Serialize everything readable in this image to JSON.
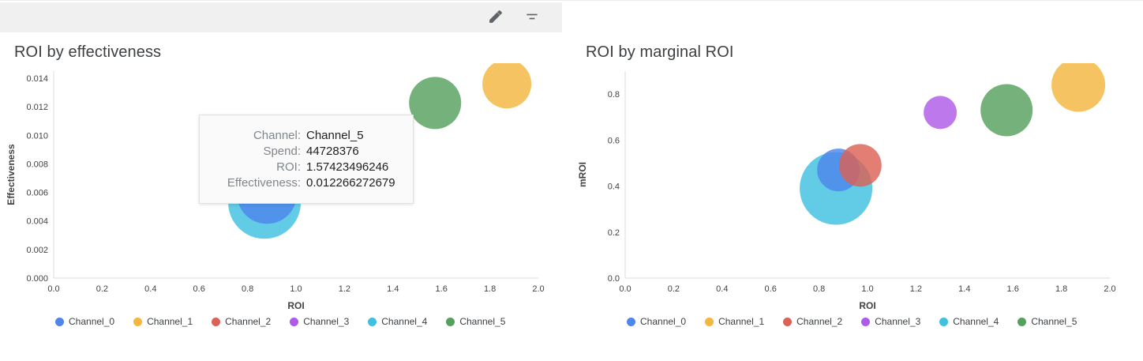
{
  "toolbar": {
    "icons": [
      {
        "name": "edit-pencil"
      },
      {
        "name": "filter-list"
      }
    ]
  },
  "tooltip": {
    "rows": [
      {
        "label": "Channel:",
        "value": "Channel_5"
      },
      {
        "label": "Spend:",
        "value": "44728376"
      },
      {
        "label": "ROI:",
        "value": "1.57423496246"
      },
      {
        "label": "Effectiveness:",
        "value": "0.012266272679"
      }
    ]
  },
  "palette": {
    "Channel_0": "#4E86EC",
    "Channel_1": "#F4B63F",
    "Channel_2": "#DC6156",
    "Channel_3": "#AE5CE8",
    "Channel_4": "#3FC0DF",
    "Channel_5": "#55A05E"
  },
  "chart_data": [
    {
      "type": "scatter",
      "title": "ROI by effectiveness",
      "xlabel": "ROI",
      "ylabel": "Effectiveness",
      "xlim": [
        0.0,
        2.0
      ],
      "ylim": [
        0.0,
        0.0145
      ],
      "grid": false,
      "legend_position": "bottom",
      "xticks": [
        0.0,
        0.2,
        0.4,
        0.6,
        0.8,
        1.0,
        1.2,
        1.4,
        1.6,
        1.8,
        2.0
      ],
      "xtick_labels": [
        "0.0",
        "0.2",
        "0.4",
        "0.6",
        "0.8",
        "1.0",
        "1.2",
        "1.4",
        "1.6",
        "1.8",
        "2.0"
      ],
      "yticks": [
        0.0,
        0.002,
        0.004,
        0.006,
        0.008,
        0.01,
        0.012,
        0.014
      ],
      "ytick_labels": [
        "0.000",
        "0.002",
        "0.004",
        "0.006",
        "0.008",
        "0.010",
        "0.012",
        "0.014"
      ],
      "points": [
        {
          "name": "Channel_4",
          "x": 0.87,
          "y": 0.0053,
          "r": 46,
          "color": "#3FC0DF"
        },
        {
          "name": "Channel_0",
          "x": 0.88,
          "y": 0.0059,
          "r": 38,
          "color": "#4E86EC"
        },
        {
          "name": "Channel_5",
          "x": 1.574,
          "y": 0.012266272679,
          "r": 33,
          "color": "#55A05E"
        },
        {
          "name": "Channel_1",
          "x": 1.87,
          "y": 0.0136,
          "r": 31,
          "color": "#F4B63F"
        }
      ],
      "legend": [
        {
          "label": "Channel_0",
          "color": "#4E86EC"
        },
        {
          "label": "Channel_1",
          "color": "#F4B63F"
        },
        {
          "label": "Channel_2",
          "color": "#DC6156"
        },
        {
          "label": "Channel_3",
          "color": "#AE5CE8"
        },
        {
          "label": "Channel_4",
          "color": "#3FC0DF"
        },
        {
          "label": "Channel_5",
          "color": "#55A05E"
        }
      ]
    },
    {
      "type": "scatter",
      "title": "ROI by marginal ROI",
      "xlabel": "ROI",
      "ylabel": "mROI",
      "xlim": [
        0.0,
        2.0
      ],
      "ylim": [
        0.0,
        0.9
      ],
      "grid": false,
      "legend_position": "bottom",
      "xticks": [
        0.0,
        0.2,
        0.4,
        0.6,
        0.8,
        1.0,
        1.2,
        1.4,
        1.6,
        1.8,
        2.0
      ],
      "xtick_labels": [
        "0.0",
        "0.2",
        "0.4",
        "0.6",
        "0.8",
        "1.0",
        "1.2",
        "1.4",
        "1.6",
        "1.8",
        "2.0"
      ],
      "yticks": [
        0.0,
        0.2,
        0.4,
        0.6,
        0.8
      ],
      "ytick_labels": [
        "0.0",
        "0.2",
        "0.4",
        "0.6",
        "0.8"
      ],
      "points": [
        {
          "name": "Channel_4",
          "x": 0.87,
          "y": 0.39,
          "r": 46,
          "color": "#3FC0DF"
        },
        {
          "name": "Channel_0",
          "x": 0.88,
          "y": 0.47,
          "r": 27,
          "color": "#4E86EC"
        },
        {
          "name": "Channel_2",
          "x": 0.97,
          "y": 0.49,
          "r": 27,
          "color": "#DC6156"
        },
        {
          "name": "Channel_3",
          "x": 1.3,
          "y": 0.72,
          "r": 21,
          "color": "#AE5CE8"
        },
        {
          "name": "Channel_5",
          "x": 1.574,
          "y": 0.73,
          "r": 33,
          "color": "#55A05E"
        },
        {
          "name": "Channel_1",
          "x": 1.87,
          "y": 0.84,
          "r": 34,
          "color": "#F4B63F"
        }
      ],
      "legend": [
        {
          "label": "Channel_0",
          "color": "#4E86EC"
        },
        {
          "label": "Channel_1",
          "color": "#F4B63F"
        },
        {
          "label": "Channel_2",
          "color": "#DC6156"
        },
        {
          "label": "Channel_3",
          "color": "#AE5CE8"
        },
        {
          "label": "Channel_4",
          "color": "#3FC0DF"
        },
        {
          "label": "Channel_5",
          "color": "#55A05E"
        }
      ]
    }
  ]
}
